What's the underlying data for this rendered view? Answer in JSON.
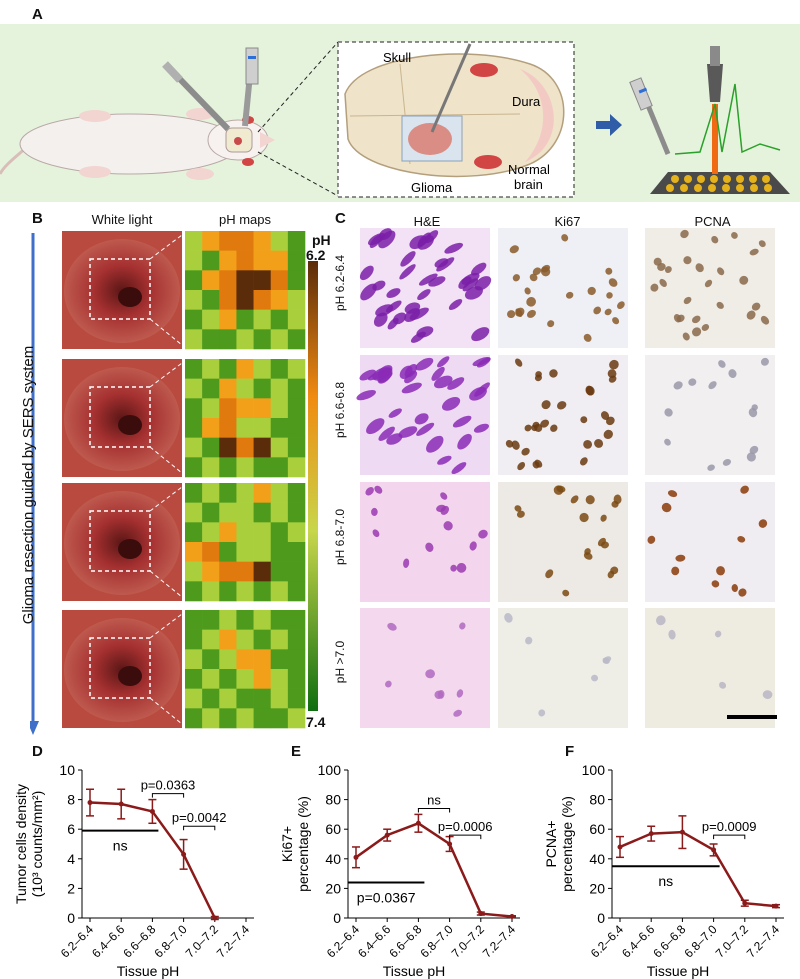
{
  "panels": {
    "A": {
      "label": "A",
      "labels": {
        "skull": "Skull",
        "dura": "Dura",
        "glioma": "Glioma",
        "normal_brain_1": "Normal",
        "normal_brain_2": "brain"
      }
    },
    "B": {
      "label": "B",
      "col_white": "White light",
      "col_ph": "pH maps",
      "side_text": "Glioma resection guided by SERS system",
      "cb_title": "pH",
      "cb_top": "6.2",
      "cb_bottom": "7.4",
      "maps": [
        [
          [
            2,
            3,
            4,
            4,
            3,
            2,
            1
          ],
          [
            2,
            1,
            3,
            4,
            3,
            3,
            1
          ],
          [
            1,
            3,
            4,
            5,
            5,
            4,
            1
          ],
          [
            2,
            1,
            4,
            5,
            4,
            3,
            2
          ],
          [
            1,
            2,
            3,
            1,
            2,
            1,
            2
          ],
          [
            2,
            1,
            1,
            2,
            1,
            2,
            1
          ]
        ],
        [
          [
            1,
            2,
            1,
            3,
            2,
            1,
            2
          ],
          [
            2,
            1,
            3,
            2,
            1,
            2,
            1
          ],
          [
            1,
            2,
            4,
            3,
            3,
            2,
            1
          ],
          [
            1,
            3,
            4,
            2,
            2,
            1,
            1
          ],
          [
            2,
            1,
            5,
            4,
            5,
            2,
            1
          ],
          [
            1,
            2,
            1,
            2,
            1,
            1,
            2
          ]
        ],
        [
          [
            1,
            2,
            1,
            2,
            3,
            2,
            1
          ],
          [
            2,
            1,
            2,
            2,
            1,
            2,
            1
          ],
          [
            1,
            2,
            3,
            2,
            2,
            1,
            2
          ],
          [
            3,
            4,
            1,
            2,
            2,
            1,
            1
          ],
          [
            2,
            3,
            4,
            4,
            5,
            1,
            1
          ],
          [
            1,
            2,
            1,
            2,
            1,
            2,
            1
          ]
        ],
        [
          [
            1,
            1,
            2,
            1,
            2,
            1,
            1
          ],
          [
            1,
            2,
            3,
            2,
            1,
            2,
            1
          ],
          [
            2,
            1,
            2,
            3,
            3,
            1,
            1
          ],
          [
            1,
            2,
            1,
            2,
            3,
            2,
            1
          ],
          [
            2,
            1,
            2,
            1,
            1,
            2,
            1
          ],
          [
            1,
            2,
            1,
            2,
            1,
            1,
            2
          ]
        ]
      ]
    },
    "C": {
      "label": "C",
      "columns": [
        "H&E",
        "Ki67",
        "PCNA"
      ],
      "rows": [
        "pH 6.2-6.4",
        "pH 6.6-6.8",
        "pH 6.8-7.0",
        "pH >7.0"
      ]
    }
  },
  "chart_data": [
    {
      "panel": "D",
      "type": "line",
      "categories": [
        "6.2–6.4",
        "6.4–6.6",
        "6.6–6.8",
        "6.8–7.0",
        "7.0–7.2",
        "7.2–7.4"
      ],
      "values": [
        7.8,
        7.7,
        7.2,
        4.3,
        0.0,
        null
      ],
      "errors": [
        0.9,
        1.0,
        0.8,
        1.0,
        0.1,
        null
      ],
      "ylim": [
        0,
        10
      ],
      "yticks": [
        0,
        2,
        4,
        6,
        8,
        10
      ],
      "ylabel_lines": [
        "Tumor cells density",
        "(10³ counts/mm²)"
      ],
      "xlabel": "Tissue pH",
      "color": "#8b1a1a",
      "brackets": [
        {
          "text": "p=0.0363",
          "from": 2,
          "to": 3,
          "y": 8.4
        },
        {
          "text": "p=0.0042",
          "from": 3,
          "to": 4,
          "y": 6.2
        }
      ],
      "ns_lines": [
        {
          "text": "ns",
          "from": 0,
          "to": 2,
          "y": 5.9
        }
      ]
    },
    {
      "panel": "E",
      "type": "line",
      "categories": [
        "6.2–6.4",
        "6.4–6.6",
        "6.6–6.8",
        "6.8–7.0",
        "7.0–7.2",
        "7.2–7.4"
      ],
      "values": [
        41,
        56,
        64,
        50,
        3,
        1
      ],
      "errors": [
        7,
        4,
        6,
        5,
        1,
        0.5
      ],
      "ylim": [
        0,
        100
      ],
      "yticks": [
        0,
        20,
        40,
        60,
        80,
        100
      ],
      "ylabel_lines": [
        "Ki67+",
        "percentage (%)"
      ],
      "xlabel": "Tissue pH",
      "color": "#8b1a1a",
      "brackets": [
        {
          "text": "ns",
          "from": 2,
          "to": 3,
          "y": 74
        },
        {
          "text": "p=0.0006",
          "from": 3,
          "to": 4,
          "y": 56
        }
      ],
      "ns_lines": [
        {
          "text": "p=0.0367",
          "from": 0,
          "to": 2,
          "y": 24,
          "below": true
        }
      ]
    },
    {
      "panel": "F",
      "type": "line",
      "categories": [
        "6.2–6.4",
        "6.4–6.6",
        "6.6–6.8",
        "6.8–7.0",
        "7.0–7.2",
        "7.2–7.4"
      ],
      "values": [
        48,
        57,
        58,
        46,
        10,
        8
      ],
      "errors": [
        7,
        5,
        11,
        4,
        2,
        1
      ],
      "ylim": [
        0,
        100
      ],
      "yticks": [
        0,
        20,
        40,
        60,
        80,
        100
      ],
      "ylabel_lines": [
        "PCNA+",
        "percentage (%)"
      ],
      "xlabel": "Tissue pH",
      "color": "#8b1a1a",
      "brackets": [
        {
          "text": "p=0.0009",
          "from": 3,
          "to": 4,
          "y": 56
        }
      ],
      "ns_lines": [
        {
          "text": "ns",
          "from": 0,
          "to": 3,
          "y": 35
        }
      ]
    }
  ]
}
